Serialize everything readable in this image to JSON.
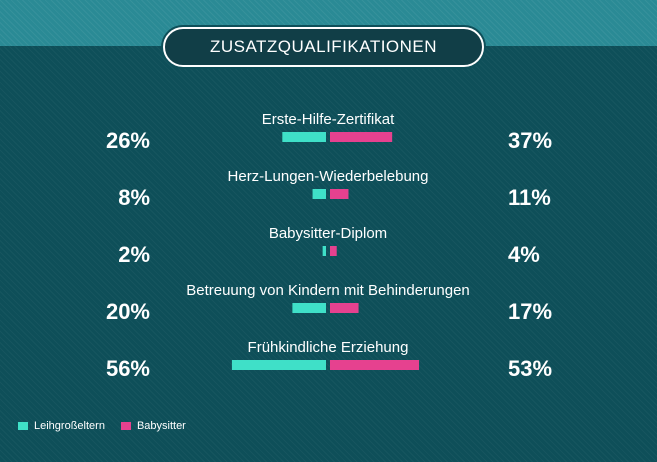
{
  "title": "ZUSATZQUALIFIKATIONEN",
  "chart_data": {
    "type": "bar",
    "orientation": "diverging-horizontal",
    "categories": [
      "Erste-Hilfe-Zertifikat",
      "Herz-Lungen-Wiederbelebung",
      "Babysitter-Diplom",
      "Betreuung von Kindern mit Behinderungen",
      "Frühkindliche Erziehung"
    ],
    "series": [
      {
        "name": "Leihgroßeltern",
        "values": [
          26,
          8,
          2,
          20,
          56
        ],
        "labels": [
          "26%",
          "8%",
          "2%",
          "20%",
          "56%"
        ],
        "color": "#3fe0c8"
      },
      {
        "name": "Babysitter",
        "values": [
          37,
          11,
          4,
          17,
          53
        ],
        "labels": [
          "37%",
          "11%",
          "4%",
          "17%",
          "53%"
        ],
        "color": "#e6418f"
      }
    ],
    "legend_position": "bottom-left"
  },
  "colors": {
    "background": "#0e4f59",
    "band": "#2a8a95",
    "text": "#ffffff"
  }
}
